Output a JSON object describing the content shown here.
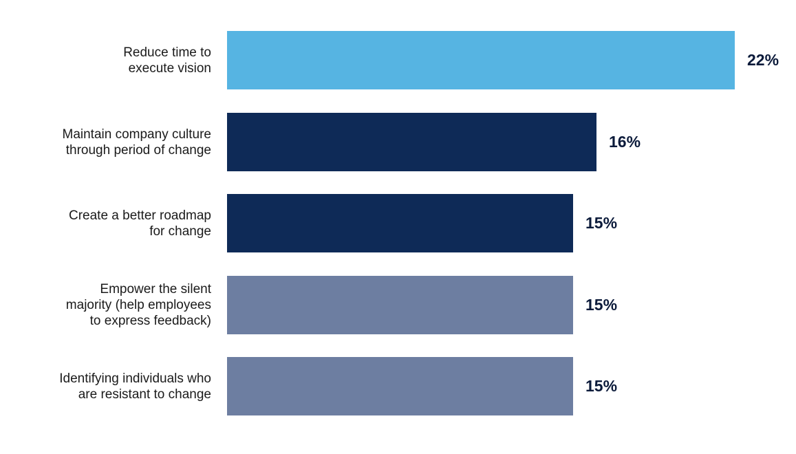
{
  "chart_data": {
    "type": "bar",
    "orientation": "horizontal",
    "categories": [
      "Reduce time to\nexecute vision",
      "Maintain company culture\nthrough period of change",
      "Create a better roadmap\nfor change",
      "Empower the silent\nmajority (help employees\nto express feedback)",
      "Identifying individuals who\nare resistant to change"
    ],
    "values": [
      22,
      16,
      15,
      15,
      15
    ],
    "value_labels": [
      "22%",
      "16%",
      "15%",
      "15%",
      "15%"
    ],
    "bar_colors": [
      "#56b4e2",
      "#0e2a57",
      "#0e2a57",
      "#6d7ea1",
      "#6d7ea1"
    ],
    "title": "",
    "xlabel": "",
    "ylabel": "",
    "xlim": [
      0,
      22
    ],
    "grid": false,
    "legend": "none"
  }
}
